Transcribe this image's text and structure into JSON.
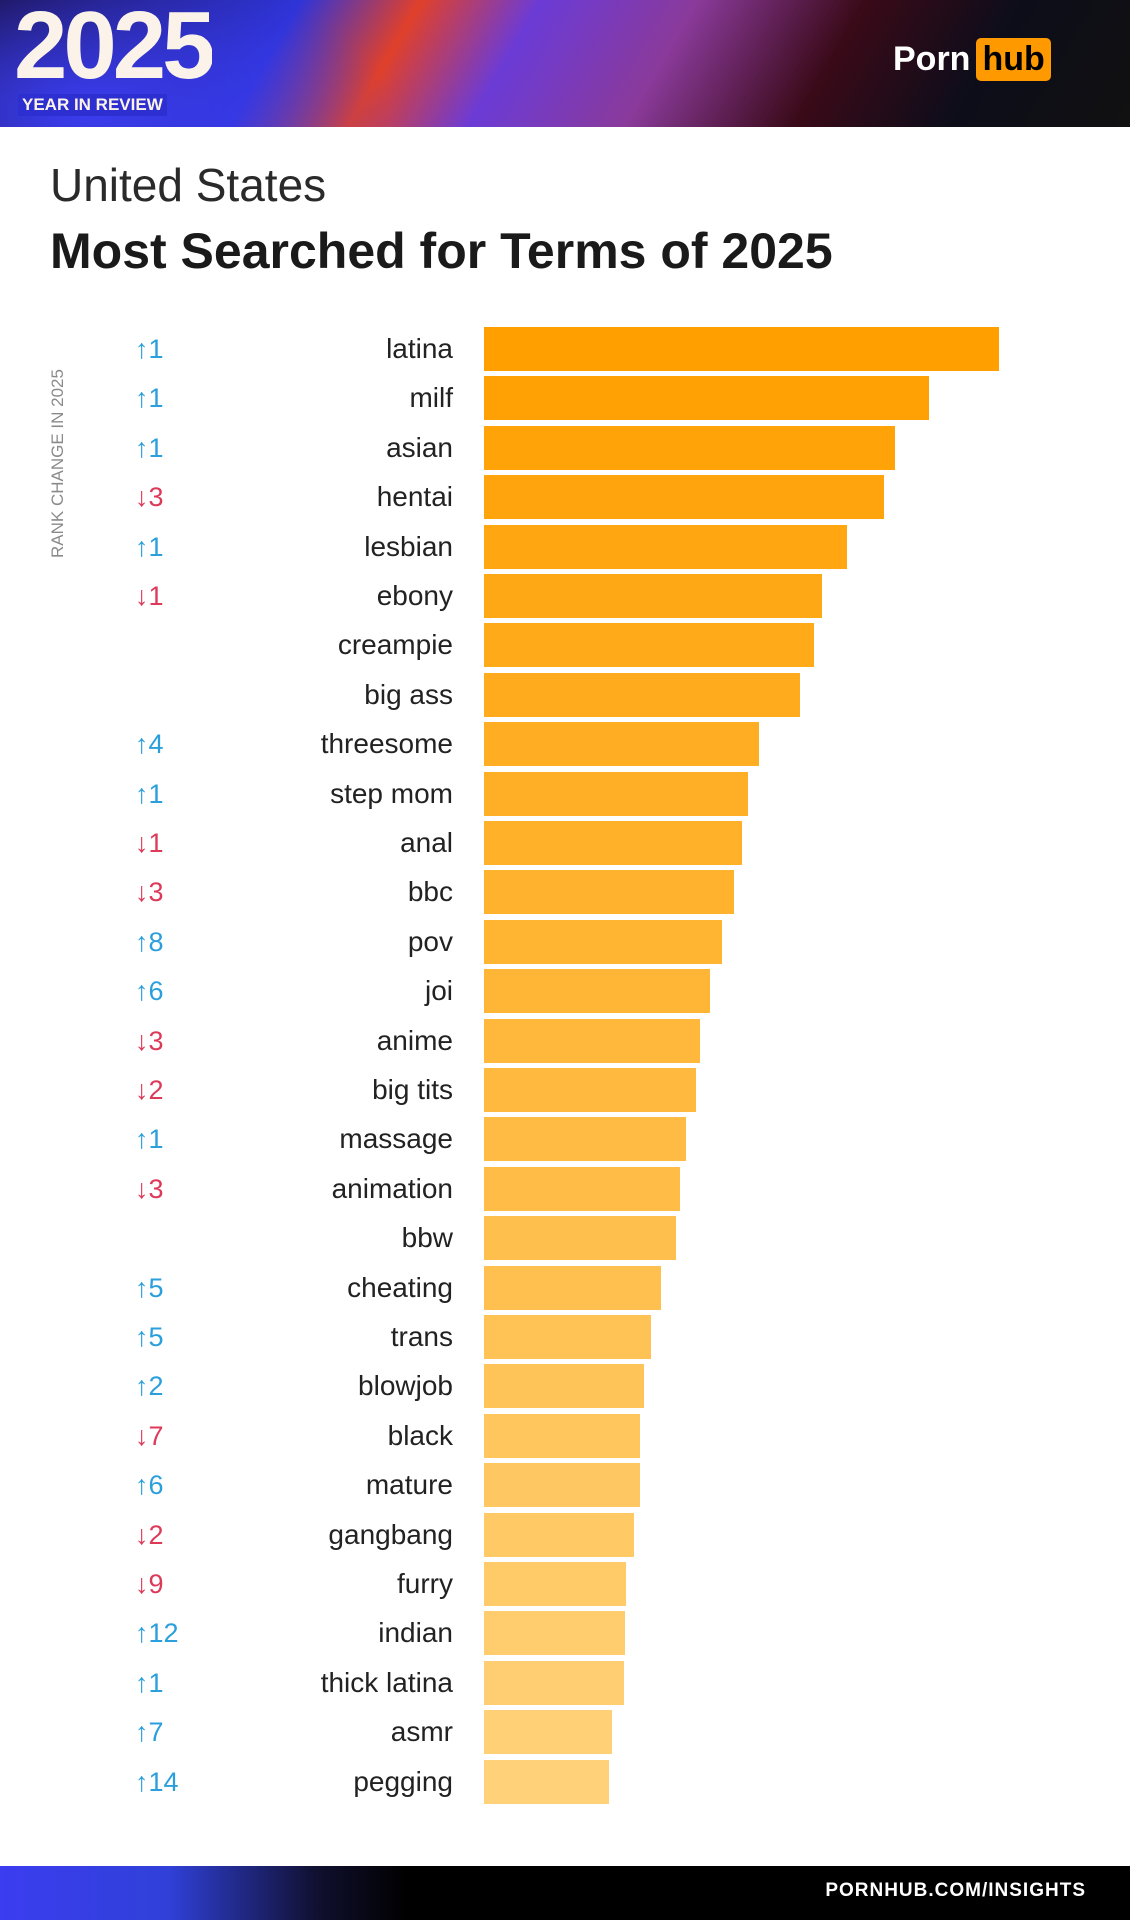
{
  "header": {
    "year": "2025",
    "subtitle": "YEAR IN REVIEW",
    "logo_left": "Porn",
    "logo_right": "hub"
  },
  "title_line1": "United States",
  "title_line2": "Most Searched for Terms of 2025",
  "footer": {
    "url": "PORNHUB.COM/INSIGHTS"
  },
  "colors": {
    "bar_top": "#ff9f00",
    "bar_bottom": "#ffd27a",
    "up": "#2a9fdc",
    "down": "#dd3a5a",
    "logo": "#ff9900"
  },
  "chart_data": {
    "type": "bar",
    "orientation": "horizontal",
    "ylabel": "RANK CHANGE IN 2025",
    "value_note": "relative bar length, top term = 100 (no axis printed)",
    "categories": [
      "latina",
      "milf",
      "asian",
      "hentai",
      "lesbian",
      "ebony",
      "creampie",
      "big ass",
      "threesome",
      "step mom",
      "anal",
      "bbc",
      "pov",
      "joi",
      "anime",
      "big tits",
      "massage",
      "animation",
      "bbw",
      "cheating",
      "trans",
      "blowjob",
      "black",
      "mature",
      "gangbang",
      "furry",
      "indian",
      "thick latina",
      "asmr",
      "pegging"
    ],
    "values": [
      100,
      86.5,
      79.8,
      77.7,
      70.5,
      65.6,
      64.1,
      61.3,
      53.4,
      51.3,
      50.1,
      48.5,
      46.3,
      43.9,
      42.0,
      41.1,
      39.2,
      38.0,
      37.3,
      34.4,
      32.5,
      31.1,
      30.2,
      30.2,
      29.2,
      27.6,
      27.3,
      27.1,
      24.9,
      24.2
    ],
    "rank_change": [
      "↑1",
      "↑1",
      "↑1",
      "↓3",
      "↑1",
      "↓1",
      "",
      "",
      "↑4",
      "↑1",
      "↓1",
      "↓3",
      "↑8",
      "↑6",
      "↓3",
      "↓2",
      "↑1",
      "↓3",
      "",
      "↑5",
      "↑5",
      "↑2",
      "↓7",
      "↑6",
      "↓2",
      "↓9",
      "↑12",
      "↑1",
      "↑7",
      "↑14"
    ]
  }
}
